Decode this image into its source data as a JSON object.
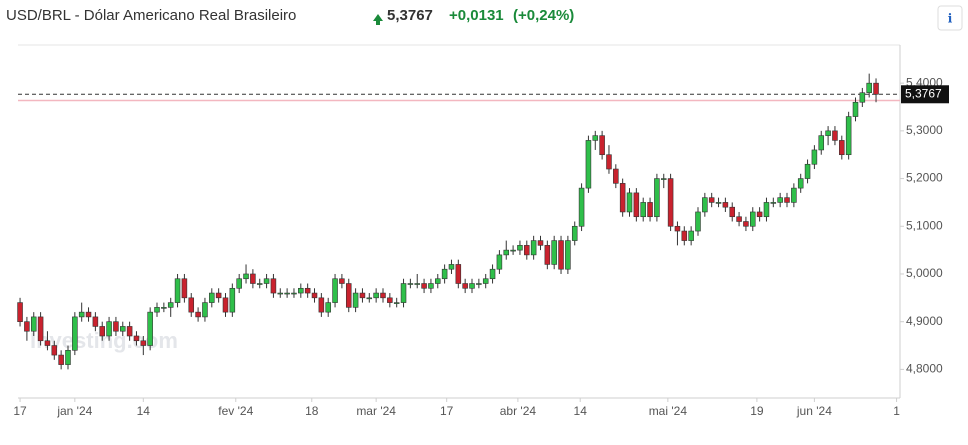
{
  "chart_data": {
    "type": "candlestick",
    "title": "USD/BRL - Dólar Americano Real Brasileiro",
    "price": "5,3767",
    "change": "+0,0131",
    "change_pct": "(+0,24%)",
    "watermark": "Investing.com",
    "info": "i",
    "last": {
      "value": 5.3767,
      "label": "5,3767"
    },
    "prev_close": 5.3636,
    "up_color": "#2fbf4a",
    "down_color": "#c9222e",
    "xlim": [
      -0.3,
      128.5
    ],
    "ylim": [
      4.74,
      5.48
    ],
    "yticks": [
      {
        "value": 4.8,
        "label": "4,8000"
      },
      {
        "value": 4.9,
        "label": "4,9000"
      },
      {
        "value": 5.0,
        "label": "5,0000"
      },
      {
        "value": 5.1,
        "label": "5,1000"
      },
      {
        "value": 5.2,
        "label": "5,2000"
      },
      {
        "value": 5.3,
        "label": "5,3000"
      },
      {
        "value": 5.4,
        "label": "5,4000"
      }
    ],
    "xticks": [
      {
        "value": 0,
        "label": "17"
      },
      {
        "value": 8,
        "label": "jan '24"
      },
      {
        "value": 18,
        "label": "14"
      },
      {
        "value": 31.5,
        "label": "fev '24"
      },
      {
        "value": 42.6,
        "label": "18"
      },
      {
        "value": 52,
        "label": "mar '24"
      },
      {
        "value": 62.3,
        "label": "17"
      },
      {
        "value": 72.7,
        "label": "abr '24"
      },
      {
        "value": 81.8,
        "label": "14"
      },
      {
        "value": 94.6,
        "label": "mai '24"
      },
      {
        "value": 107.6,
        "label": "19"
      },
      {
        "value": 116,
        "label": "jun '24"
      },
      {
        "value": 128,
        "label": "1"
      }
    ],
    "ohlc": [
      [
        4.94,
        4.95,
        4.89,
        4.9
      ],
      [
        4.9,
        4.91,
        4.86,
        4.88
      ],
      [
        4.88,
        4.92,
        4.87,
        4.91
      ],
      [
        4.91,
        4.92,
        4.85,
        4.86
      ],
      [
        4.86,
        4.88,
        4.84,
        4.85
      ],
      [
        4.85,
        4.86,
        4.82,
        4.83
      ],
      [
        4.83,
        4.84,
        4.8,
        4.81
      ],
      [
        4.81,
        4.85,
        4.8,
        4.84
      ],
      [
        4.84,
        4.92,
        4.83,
        4.91
      ],
      [
        4.91,
        4.94,
        4.9,
        4.92
      ],
      [
        4.92,
        4.93,
        4.9,
        4.91
      ],
      [
        4.91,
        4.92,
        4.88,
        4.89
      ],
      [
        4.89,
        4.9,
        4.86,
        4.87
      ],
      [
        4.87,
        4.91,
        4.86,
        4.9
      ],
      [
        4.9,
        4.91,
        4.87,
        4.88
      ],
      [
        4.88,
        4.9,
        4.87,
        4.89
      ],
      [
        4.89,
        4.9,
        4.86,
        4.87
      ],
      [
        4.87,
        4.88,
        4.85,
        4.86
      ],
      [
        4.86,
        4.87,
        4.83,
        4.85
      ],
      [
        4.85,
        4.93,
        4.84,
        4.92
      ],
      [
        4.92,
        4.94,
        4.91,
        4.93
      ],
      [
        4.93,
        4.94,
        4.92,
        4.93
      ],
      [
        4.93,
        4.95,
        4.91,
        4.94
      ],
      [
        4.94,
        5.0,
        4.93,
        4.99
      ],
      [
        4.99,
        5.0,
        4.94,
        4.95
      ],
      [
        4.95,
        4.96,
        4.91,
        4.92
      ],
      [
        4.92,
        4.93,
        4.9,
        4.91
      ],
      [
        4.91,
        4.95,
        4.9,
        4.94
      ],
      [
        4.94,
        4.97,
        4.93,
        4.96
      ],
      [
        4.96,
        4.97,
        4.94,
        4.95
      ],
      [
        4.95,
        4.96,
        4.91,
        4.92
      ],
      [
        4.92,
        4.98,
        4.91,
        4.97
      ],
      [
        4.97,
        5.0,
        4.96,
        4.99
      ],
      [
        4.99,
        5.02,
        4.98,
        5.0
      ],
      [
        5.0,
        5.01,
        4.97,
        4.98
      ],
      [
        4.98,
        4.99,
        4.97,
        4.98
      ],
      [
        4.98,
        5.0,
        4.97,
        4.99
      ],
      [
        4.99,
        5.0,
        4.95,
        4.96
      ],
      [
        4.96,
        4.97,
        4.95,
        4.96
      ],
      [
        4.96,
        4.97,
        4.95,
        4.96
      ],
      [
        4.96,
        4.97,
        4.95,
        4.96
      ],
      [
        4.96,
        4.98,
        4.95,
        4.97
      ],
      [
        4.97,
        4.98,
        4.95,
        4.96
      ],
      [
        4.96,
        4.97,
        4.94,
        4.95
      ],
      [
        4.95,
        4.96,
        4.91,
        4.92
      ],
      [
        4.92,
        4.95,
        4.91,
        4.94
      ],
      [
        4.94,
        5.0,
        4.93,
        4.99
      ],
      [
        4.99,
        5.0,
        4.97,
        4.98
      ],
      [
        4.98,
        4.99,
        4.92,
        4.93
      ],
      [
        4.93,
        4.97,
        4.92,
        4.96
      ],
      [
        4.96,
        4.97,
        4.94,
        4.95
      ],
      [
        4.95,
        4.96,
        4.94,
        4.95
      ],
      [
        4.95,
        4.97,
        4.94,
        4.96
      ],
      [
        4.96,
        4.97,
        4.94,
        4.95
      ],
      [
        4.95,
        4.96,
        4.93,
        4.94
      ],
      [
        4.94,
        4.95,
        4.93,
        4.94
      ],
      [
        4.94,
        4.99,
        4.93,
        4.98
      ],
      [
        4.98,
        4.99,
        4.97,
        4.98
      ],
      [
        4.98,
        5.0,
        4.97,
        4.98
      ],
      [
        4.98,
        4.99,
        4.96,
        4.97
      ],
      [
        4.97,
        4.99,
        4.96,
        4.98
      ],
      [
        4.98,
        5.0,
        4.97,
        4.99
      ],
      [
        4.99,
        5.02,
        4.98,
        5.01
      ],
      [
        5.01,
        5.03,
        5.0,
        5.02
      ],
      [
        5.02,
        5.03,
        4.97,
        4.98
      ],
      [
        4.98,
        4.99,
        4.96,
        4.97
      ],
      [
        4.97,
        4.99,
        4.96,
        4.98
      ],
      [
        4.98,
        4.99,
        4.97,
        4.98
      ],
      [
        4.98,
        5.0,
        4.97,
        4.99
      ],
      [
        4.99,
        5.02,
        4.98,
        5.01
      ],
      [
        5.01,
        5.05,
        5.0,
        5.04
      ],
      [
        5.04,
        5.07,
        5.03,
        5.05
      ],
      [
        5.05,
        5.06,
        5.04,
        5.05
      ],
      [
        5.05,
        5.07,
        5.04,
        5.06
      ],
      [
        5.06,
        5.07,
        5.03,
        5.04
      ],
      [
        5.04,
        5.08,
        5.03,
        5.07
      ],
      [
        5.07,
        5.08,
        5.05,
        5.06
      ],
      [
        5.06,
        5.07,
        5.01,
        5.02
      ],
      [
        5.02,
        5.08,
        5.01,
        5.07
      ],
      [
        5.07,
        5.08,
        5.0,
        5.01
      ],
      [
        5.01,
        5.08,
        5.0,
        5.07
      ],
      [
        5.07,
        5.11,
        5.06,
        5.1
      ],
      [
        5.1,
        5.19,
        5.09,
        5.18
      ],
      [
        5.18,
        5.29,
        5.17,
        5.28
      ],
      [
        5.28,
        5.3,
        5.26,
        5.29
      ],
      [
        5.29,
        5.3,
        5.24,
        5.25
      ],
      [
        5.25,
        5.27,
        5.21,
        5.22
      ],
      [
        5.22,
        5.23,
        5.18,
        5.19
      ],
      [
        5.19,
        5.2,
        5.12,
        5.13
      ],
      [
        5.13,
        5.18,
        5.12,
        5.17
      ],
      [
        5.17,
        5.18,
        5.11,
        5.12
      ],
      [
        5.12,
        5.16,
        5.11,
        5.15
      ],
      [
        5.15,
        5.16,
        5.11,
        5.12
      ],
      [
        5.12,
        5.21,
        5.11,
        5.2
      ],
      [
        5.2,
        5.21,
        5.18,
        5.2
      ],
      [
        5.2,
        5.21,
        5.09,
        5.1
      ],
      [
        5.1,
        5.11,
        5.06,
        5.09
      ],
      [
        5.09,
        5.1,
        5.06,
        5.07
      ],
      [
        5.07,
        5.1,
        5.06,
        5.09
      ],
      [
        5.09,
        5.14,
        5.08,
        5.13
      ],
      [
        5.13,
        5.17,
        5.12,
        5.16
      ],
      [
        5.16,
        5.17,
        5.14,
        5.15
      ],
      [
        5.15,
        5.16,
        5.14,
        5.15
      ],
      [
        5.15,
        5.16,
        5.13,
        5.14
      ],
      [
        5.14,
        5.15,
        5.11,
        5.12
      ],
      [
        5.12,
        5.13,
        5.1,
        5.11
      ],
      [
        5.11,
        5.12,
        5.09,
        5.1
      ],
      [
        5.1,
        5.14,
        5.09,
        5.13
      ],
      [
        5.13,
        5.14,
        5.11,
        5.12
      ],
      [
        5.12,
        5.16,
        5.11,
        5.15
      ],
      [
        5.15,
        5.16,
        5.14,
        5.15
      ],
      [
        5.15,
        5.17,
        5.14,
        5.16
      ],
      [
        5.16,
        5.17,
        5.14,
        5.15
      ],
      [
        5.15,
        5.19,
        5.14,
        5.18
      ],
      [
        5.18,
        5.21,
        5.17,
        5.2
      ],
      [
        5.2,
        5.24,
        5.19,
        5.23
      ],
      [
        5.23,
        5.27,
        5.22,
        5.26
      ],
      [
        5.26,
        5.3,
        5.25,
        5.29
      ],
      [
        5.29,
        5.31,
        5.27,
        5.3
      ],
      [
        5.3,
        5.31,
        5.27,
        5.28
      ],
      [
        5.28,
        5.29,
        5.24,
        5.25
      ],
      [
        5.25,
        5.34,
        5.24,
        5.33
      ],
      [
        5.33,
        5.37,
        5.32,
        5.36
      ],
      [
        5.36,
        5.39,
        5.35,
        5.38
      ],
      [
        5.38,
        5.42,
        5.37,
        5.4
      ],
      [
        5.4,
        5.41,
        5.36,
        5.3767
      ]
    ]
  }
}
